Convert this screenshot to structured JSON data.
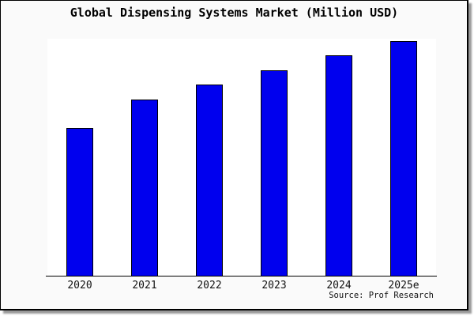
{
  "title": "Global Dispensing Systems Market (Million USD)",
  "source_text": "Source: Prof Research",
  "colors": {
    "bar_fill": "#0000EE",
    "bar_border": "#000000",
    "figure_background": "#FAFAFA",
    "plot_background": "#FFFFFF",
    "axis_line": "#000000",
    "frame_border": "#000000",
    "shadow": "#999999"
  },
  "chart_data": {
    "type": "bar",
    "title": "Global Dispensing Systems Market (Million USD)",
    "categories": [
      "2020",
      "2021",
      "2022",
      "2023",
      "2024",
      "2025e"
    ],
    "values": [
      62.8,
      75.2,
      81.5,
      87.6,
      94.0,
      100.0
    ],
    "values_note": "no y-axis or data labels shown; values are relative bar heights with tallest bar (2025e) = 100",
    "xlabel": "",
    "ylabel": "",
    "ylim": [
      0,
      101
    ],
    "grid": false,
    "legend": false,
    "source": "Source: Prof Research"
  }
}
